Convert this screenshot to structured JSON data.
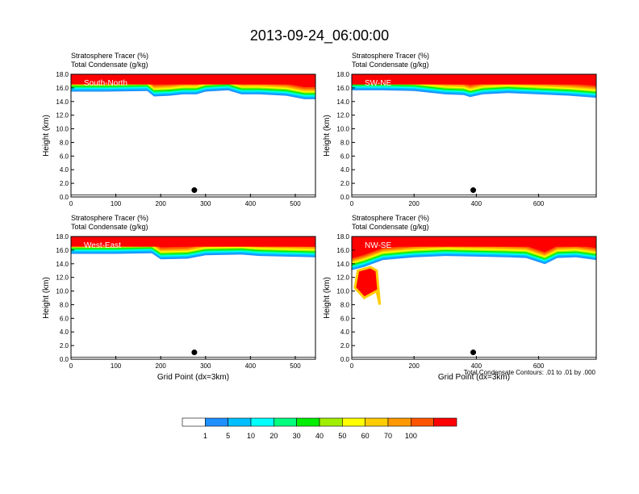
{
  "title": "2013-09-24_06:00:00",
  "footnote": "Total Condensate Contours: .01 to .01 by .000",
  "colors": {
    "levels": [
      "#ffffff",
      "#1e90ff",
      "#00bfff",
      "#00ffff",
      "#00ff7f",
      "#00ee00",
      "#a0ee00",
      "#ffff00",
      "#ffcc00",
      "#ff9900",
      "#ff5500",
      "#ff0000"
    ],
    "outline": "#000000"
  },
  "colorbar": {
    "labels": [
      "1",
      "5",
      "10",
      "20",
      "30",
      "40",
      "50",
      "60",
      "70",
      "100"
    ]
  },
  "chart_data": [
    {
      "type": "heatmap",
      "panel": "South-North",
      "subtitles": [
        "Stratosphere Tracer   (%)",
        "Total Condensate   (g/kg)"
      ],
      "ylabel": "Height (km)",
      "xlabel": "",
      "ylim": [
        0,
        18
      ],
      "yticks": [
        "0.0",
        "2.0",
        "4.0",
        "6.0",
        "8.0",
        "10.0",
        "12.0",
        "14.0",
        "16.0",
        "18.0"
      ],
      "xlim": [
        0,
        545
      ],
      "xticks": [
        0,
        100,
        200,
        300,
        400,
        500
      ],
      "tropopause_km": [
        [
          0,
          15.4
        ],
        [
          80,
          15.4
        ],
        [
          170,
          15.5
        ],
        [
          185,
          14.7
        ],
        [
          220,
          14.8
        ],
        [
          250,
          15.0
        ],
        [
          280,
          15.0
        ],
        [
          300,
          15.4
        ],
        [
          350,
          15.6
        ],
        [
          380,
          15.0
        ],
        [
          420,
          15.0
        ],
        [
          480,
          14.8
        ],
        [
          520,
          14.3
        ],
        [
          545,
          14.3
        ]
      ],
      "marker": {
        "x": 275,
        "y": 1.0
      }
    },
    {
      "type": "heatmap",
      "panel": "SW-NE",
      "subtitles": [
        "Stratosphere Tracer   (%)",
        "Total Condensate   (g/kg)"
      ],
      "ylabel": "Height (km)",
      "xlabel": "",
      "ylim": [
        0,
        18
      ],
      "yticks": [
        "0.0",
        "2.0",
        "4.0",
        "6.0",
        "8.0",
        "10.0",
        "12.0",
        "14.0",
        "16.0",
        "18.0"
      ],
      "xlim": [
        0,
        785
      ],
      "xticks": [
        0,
        200,
        400,
        600
      ],
      "tropopause_km": [
        [
          0,
          15.6
        ],
        [
          100,
          15.6
        ],
        [
          200,
          15.5
        ],
        [
          300,
          15.0
        ],
        [
          360,
          14.9
        ],
        [
          380,
          14.6
        ],
        [
          420,
          15.0
        ],
        [
          500,
          15.2
        ],
        [
          600,
          15.0
        ],
        [
          700,
          14.8
        ],
        [
          785,
          14.5
        ]
      ],
      "marker": {
        "x": 390,
        "y": 1.0
      }
    },
    {
      "type": "heatmap",
      "panel": "West-East",
      "subtitles": [
        "Stratosphere Tracer   (%)",
        "Total Condensate   (g/kg)"
      ],
      "ylabel": "Height (km)",
      "xlabel": "Grid Point (dx=3km)",
      "ylim": [
        0,
        18
      ],
      "yticks": [
        "0.0",
        "2.0",
        "4.0",
        "6.0",
        "8.0",
        "10.0",
        "12.0",
        "14.0",
        "16.0",
        "18.0"
      ],
      "xlim": [
        0,
        545
      ],
      "xticks": [
        0,
        100,
        200,
        300,
        400,
        500
      ],
      "tropopause_km": [
        [
          0,
          15.4
        ],
        [
          100,
          15.4
        ],
        [
          180,
          15.5
        ],
        [
          200,
          14.6
        ],
        [
          260,
          14.7
        ],
        [
          300,
          15.2
        ],
        [
          380,
          15.3
        ],
        [
          420,
          15.1
        ],
        [
          480,
          15.0
        ],
        [
          545,
          14.9
        ]
      ],
      "marker": {
        "x": 275,
        "y": 1.0
      }
    },
    {
      "type": "heatmap",
      "panel": "NW-SE",
      "subtitles": [
        "Stratosphere Tracer   (%)",
        "Total Condensate   (g/kg)"
      ],
      "ylabel": "Height (km)",
      "xlabel": "Grid Point (dx=3km)",
      "ylim": [
        0,
        18
      ],
      "yticks": [
        "0.0",
        "2.0",
        "4.0",
        "6.0",
        "8.0",
        "10.0",
        "12.0",
        "14.0",
        "16.0",
        "18.0"
      ],
      "xlim": [
        0,
        785
      ],
      "xticks": [
        0,
        200,
        400,
        600
      ],
      "tropopause_km": [
        [
          0,
          13.0
        ],
        [
          40,
          13.5
        ],
        [
          100,
          14.5
        ],
        [
          200,
          14.9
        ],
        [
          300,
          15.1
        ],
        [
          400,
          15.0
        ],
        [
          500,
          14.9
        ],
        [
          560,
          14.8
        ],
        [
          620,
          13.9
        ],
        [
          660,
          14.8
        ],
        [
          720,
          14.9
        ],
        [
          785,
          14.5
        ]
      ],
      "intrusion": [
        [
          10,
          10.5
        ],
        [
          40,
          9.0
        ],
        [
          80,
          10.0
        ],
        [
          90,
          8.0
        ],
        [
          80,
          13.0
        ],
        [
          60,
          13.5
        ],
        [
          20,
          13.0
        ]
      ],
      "marker": {
        "x": 390,
        "y": 1.0
      }
    }
  ]
}
